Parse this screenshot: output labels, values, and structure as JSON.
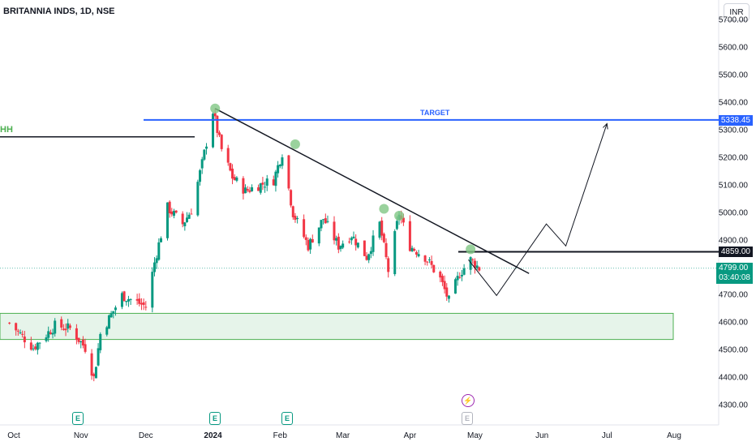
{
  "header": {
    "title": "BRITANNIA INDS, 1D, NSE",
    "currency": "INR"
  },
  "annotations": {
    "hh_label": "HH",
    "target_label": "TARGET",
    "target_price": "5338.45",
    "resistance_price": "4859.00",
    "last_price": "4799.00",
    "countdown": "03:40:08"
  },
  "events": {
    "earnings_icon_text": "E",
    "dividend_icon": "flash-icon"
  },
  "colors": {
    "up": "#089981",
    "down": "#f23645",
    "target_line": "#2962ff",
    "zone_fill": "#e6f4ea",
    "zone_border": "#4caf50",
    "pivot_marker": "#81c784"
  },
  "chart_data": {
    "type": "candlestick",
    "symbol": "BRITANNIA INDS",
    "interval": "1D",
    "exchange": "NSE",
    "y_ticks": [
      "5700.00",
      "5600.00",
      "5500.00",
      "5400.00",
      "5300.00",
      "5200.00",
      "5100.00",
      "5000.00",
      "4900.00",
      "4800.00",
      "4700.00",
      "4600.00",
      "4500.00",
      "4400.00",
      "4300.00"
    ],
    "x_ticks": [
      {
        "label": "Oct",
        "bold": false
      },
      {
        "label": "Nov",
        "bold": false
      },
      {
        "label": "Dec",
        "bold": false
      },
      {
        "label": "2024",
        "bold": true
      },
      {
        "label": "Feb",
        "bold": false
      },
      {
        "label": "Mar",
        "bold": false
      },
      {
        "label": "Apr",
        "bold": false
      },
      {
        "label": "May",
        "bold": false
      },
      {
        "label": "Jun",
        "bold": false
      },
      {
        "label": "Jul",
        "bold": false
      },
      {
        "label": "Aug",
        "bold": false
      }
    ],
    "ylim": [
      4245,
      5760
    ],
    "levels": {
      "target": 5338.45,
      "resistance": 4859.0,
      "last": 4799.0,
      "previous_high": 5277
    },
    "demand_zone": {
      "low": 4540,
      "high": 4635
    },
    "candles_hint": "approximate daily OHLC path from Sep 2023 to early May 2024",
    "path": [
      [
        "2023-09-29",
        4600
      ],
      [
        "2023-10-10",
        4510
      ],
      [
        "2023-10-20",
        4590
      ],
      [
        "2023-10-27",
        4580
      ],
      [
        "2023-11-03",
        4510
      ],
      [
        "2023-11-07",
        4400
      ],
      [
        "2023-11-10",
        4560
      ],
      [
        "2023-11-20",
        4700
      ],
      [
        "2023-12-01",
        4660
      ],
      [
        "2023-12-05",
        4820
      ],
      [
        "2023-12-11",
        5020
      ],
      [
        "2023-12-18",
        4960
      ],
      [
        "2023-12-22",
        5010
      ],
      [
        "2023-12-27",
        5180
      ],
      [
        "2024-01-01",
        5370
      ],
      [
        "2024-01-05",
        5230
      ],
      [
        "2024-01-10",
        5130
      ],
      [
        "2024-01-16",
        5080
      ],
      [
        "2024-01-22",
        5100
      ],
      [
        "2024-01-29",
        5120
      ],
      [
        "2024-02-02",
        5220
      ],
      [
        "2024-02-07",
        5000
      ],
      [
        "2024-02-14",
        4880
      ],
      [
        "2024-02-21",
        4980
      ],
      [
        "2024-02-28",
        4880
      ],
      [
        "2024-03-05",
        4920
      ],
      [
        "2024-03-12",
        4840
      ],
      [
        "2024-03-18",
        4960
      ],
      [
        "2024-03-22",
        4790
      ],
      [
        "2024-03-27",
        5000
      ],
      [
        "2024-04-01",
        4880
      ],
      [
        "2024-04-08",
        4840
      ],
      [
        "2024-04-15",
        4760
      ],
      [
        "2024-04-19",
        4680
      ],
      [
        "2024-04-24",
        4780
      ],
      [
        "2024-04-29",
        4830
      ],
      [
        "2024-05-03",
        4799
      ]
    ],
    "pivots": [
      {
        "date": "2024-01-02",
        "value": 5380
      },
      {
        "date": "2024-02-08",
        "value": 5250
      },
      {
        "date": "2024-03-20",
        "value": 5015
      },
      {
        "date": "2024-03-27",
        "value": 4990
      },
      {
        "date": "2024-04-29",
        "value": 4868
      }
    ],
    "trendline": {
      "from": {
        "date": "2024-01-02",
        "value": 5380
      },
      "to": {
        "date": "2024-05-26",
        "value": 4780
      }
    },
    "projection": [
      {
        "date": "2024-04-28",
        "value": 4830
      },
      {
        "date": "2024-05-11",
        "value": 4700
      },
      {
        "date": "2024-06-03",
        "value": 4960
      },
      {
        "date": "2024-06-12",
        "value": 4880
      },
      {
        "date": "2024-07-01",
        "value": 5325
      }
    ]
  }
}
